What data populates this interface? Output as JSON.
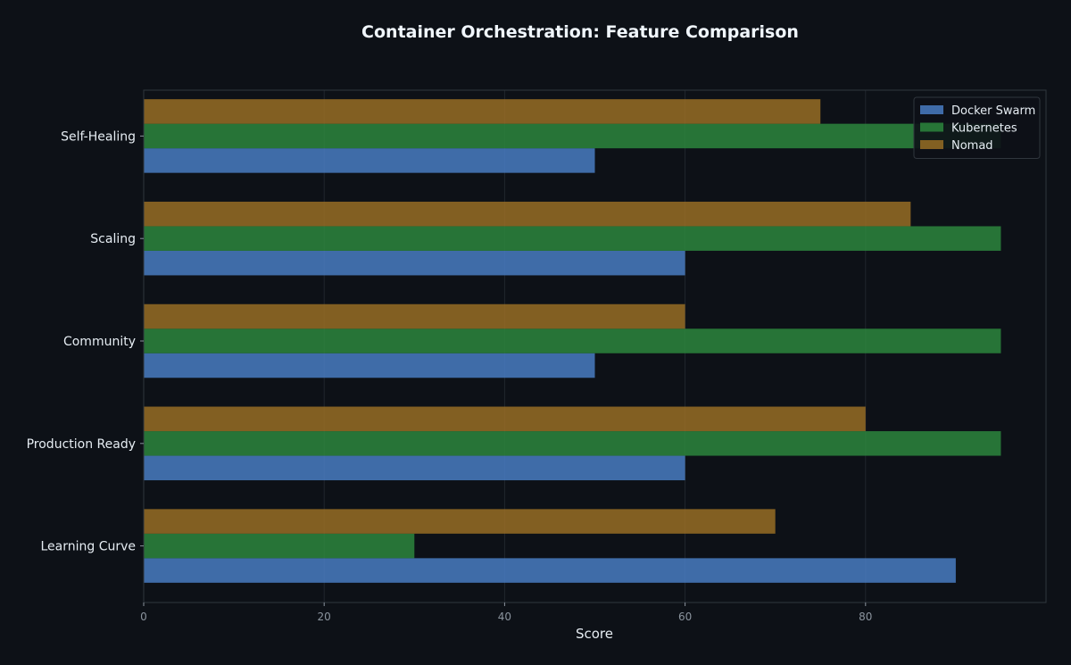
{
  "chart_data": {
    "type": "bar",
    "orientation": "horizontal",
    "title": "Container Orchestration: Feature Comparison",
    "xlabel": "Score",
    "ylabel": "",
    "xlim": [
      0,
      100
    ],
    "xticks": [
      0,
      20,
      40,
      60,
      80
    ],
    "categories": [
      "Self-Healing",
      "Scaling",
      "Community",
      "Production Ready",
      "Learning Curve"
    ],
    "series": [
      {
        "name": "Docker Swarm",
        "color": "#4a80c8",
        "values": [
          50,
          60,
          50,
          60,
          90
        ]
      },
      {
        "name": "Kubernetes",
        "color": "#2d8a3e",
        "values": [
          95,
          95,
          95,
          95,
          30
        ]
      },
      {
        "name": "Nomad",
        "color": "#9c7024",
        "values": [
          75,
          85,
          60,
          80,
          70
        ]
      }
    ],
    "legend_position": "top-right",
    "grid": true
  }
}
